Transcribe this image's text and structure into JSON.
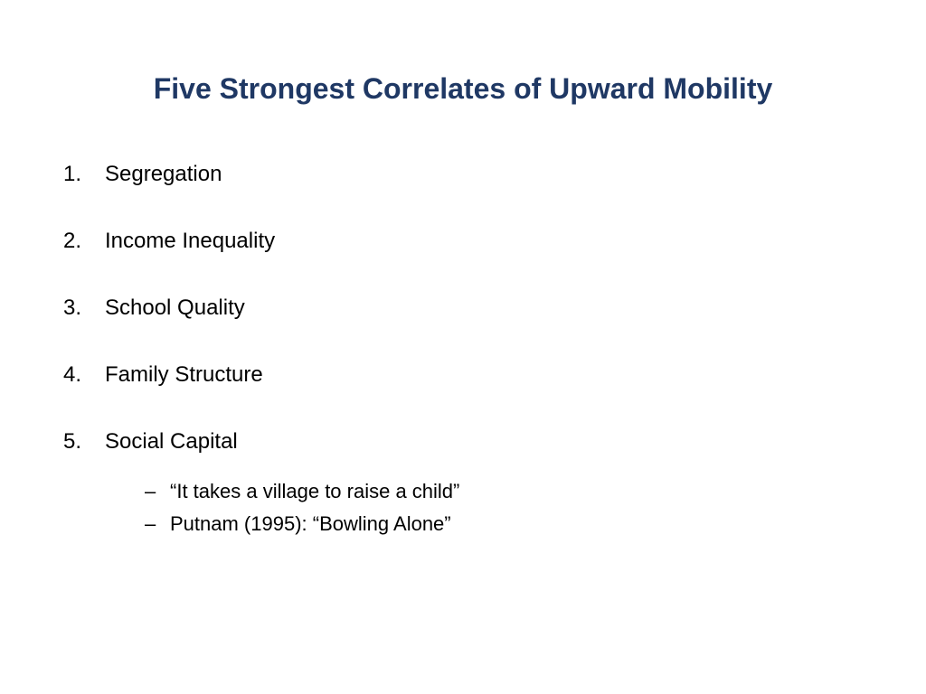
{
  "slide": {
    "title": "Five Strongest Correlates of Upward Mobility",
    "title_color": "#1f3864",
    "title_fontsize": 32,
    "background_color": "#ffffff",
    "body_color": "#000000",
    "body_fontsize": 24,
    "sub_fontsize": 22,
    "items": [
      {
        "number": "1.",
        "text": "Segregation"
      },
      {
        "number": "2.",
        "text": "Income Inequality"
      },
      {
        "number": "3.",
        "text": "School Quality"
      },
      {
        "number": "4.",
        "text": "Family Structure"
      },
      {
        "number": "5.",
        "text": "Social Capital"
      }
    ],
    "subitems": [
      {
        "dash": "–",
        "text": "“It takes a village to raise a child”"
      },
      {
        "dash": "–",
        "text": "Putnam (1995): “Bowling Alone”"
      }
    ]
  }
}
